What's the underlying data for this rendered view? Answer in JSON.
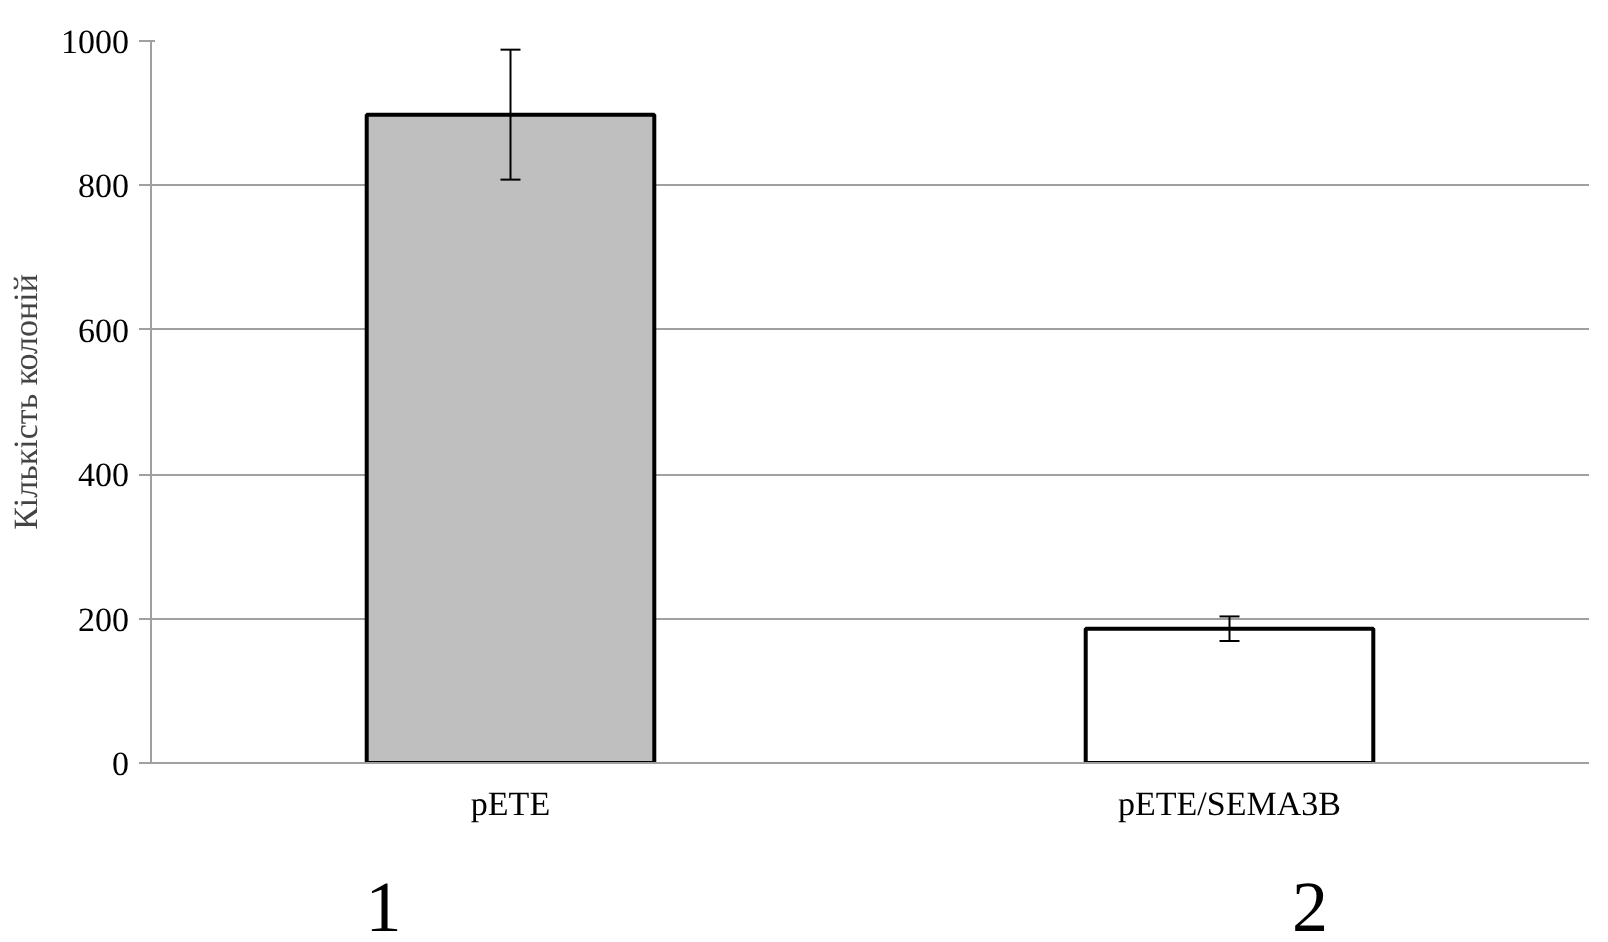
{
  "chart_data": {
    "type": "bar",
    "ylabel": "Кількість колоній",
    "categories": [
      "pETE",
      "pETE/SEMA3B"
    ],
    "values": [
      898,
      186
    ],
    "colors": [
      "#bfbfbf",
      "#ffffff"
    ],
    "errors": [
      90,
      17
    ],
    "ylim": [
      0,
      1000
    ],
    "yticks": [
      0,
      200,
      400,
      600,
      800,
      1000
    ],
    "grid": "y",
    "annotations": [
      "1",
      "2"
    ]
  }
}
